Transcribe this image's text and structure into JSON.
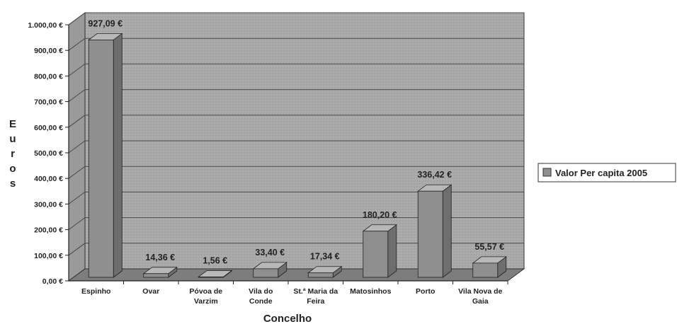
{
  "chart_data": {
    "type": "bar",
    "categories": [
      "Espinho",
      "Ovar",
      "Póvoa de Varzim",
      "Vila do Conde",
      "St.ª Maria da Feira",
      "Matosinhos",
      "Porto",
      "Vila Nova de Gaia"
    ],
    "category_lines": [
      [
        "Espinho"
      ],
      [
        "Ovar"
      ],
      [
        "Póvoa de",
        "Varzim"
      ],
      [
        "Vila do",
        "Conde"
      ],
      [
        "St.ª Maria da",
        "Feira"
      ],
      [
        "Matosinhos"
      ],
      [
        "Porto"
      ],
      [
        "Vila Nova de",
        "Gaia"
      ]
    ],
    "series": [
      {
        "name": "Valor Per capita 2005",
        "values": [
          927.09,
          14.36,
          1.56,
          33.4,
          17.34,
          180.2,
          336.42,
          55.57
        ],
        "labels": [
          "927,09 €",
          "14,36 €",
          "1,56 €",
          "33,40 €",
          "17,34 €",
          "180,20 €",
          "336,42 €",
          "55,57 €"
        ]
      }
    ],
    "xlabel": "Concelho",
    "ylabel": "Euros",
    "ylabel_chars": [
      "E",
      "u",
      "r",
      "o",
      "s"
    ],
    "ylim": [
      0,
      1000
    ],
    "yticks": [
      0,
      100,
      200,
      300,
      400,
      500,
      600,
      700,
      800,
      900,
      1000
    ],
    "ytick_labels": [
      "0,00 €",
      "100,00 €",
      "200,00 €",
      "300,00 €",
      "400,00 €",
      "500,00 €",
      "600,00 €",
      "700,00 €",
      "800,00 €",
      "900,00 €",
      "1.000,00 €"
    ],
    "grid": true,
    "legend_position": "right",
    "style": "3d",
    "colors": {
      "bar_front": "#8f8f8f",
      "bar_top": "#b8b8b8",
      "bar_side": "#6e6e6e",
      "wall": "#a9a9a9",
      "floor": "#7d7d7d",
      "gridline": "#4a4a4a"
    }
  }
}
